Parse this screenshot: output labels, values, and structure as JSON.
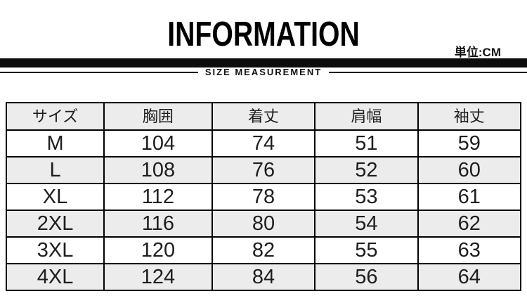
{
  "header": {
    "title": "INFORMATION",
    "unit_label": "単位:CM",
    "subtitle": "SIZE MEASUREMENT"
  },
  "size_table": {
    "columns": [
      "サイズ",
      "胸囲",
      "着丈",
      "肩幅",
      "袖丈"
    ],
    "rows": [
      [
        "M",
        "104",
        "74",
        "51",
        "59"
      ],
      [
        "L",
        "108",
        "76",
        "52",
        "60"
      ],
      [
        "XL",
        "112",
        "78",
        "53",
        "61"
      ],
      [
        "2XL",
        "116",
        "80",
        "54",
        "62"
      ],
      [
        "3XL",
        "120",
        "82",
        "55",
        "63"
      ],
      [
        "4XL",
        "124",
        "84",
        "56",
        "64"
      ]
    ]
  },
  "colors": {
    "divider_bar": "#0c0c0c",
    "row_stripe": "#ececec",
    "table_border": "#000000",
    "text": "#1e1e1e"
  }
}
